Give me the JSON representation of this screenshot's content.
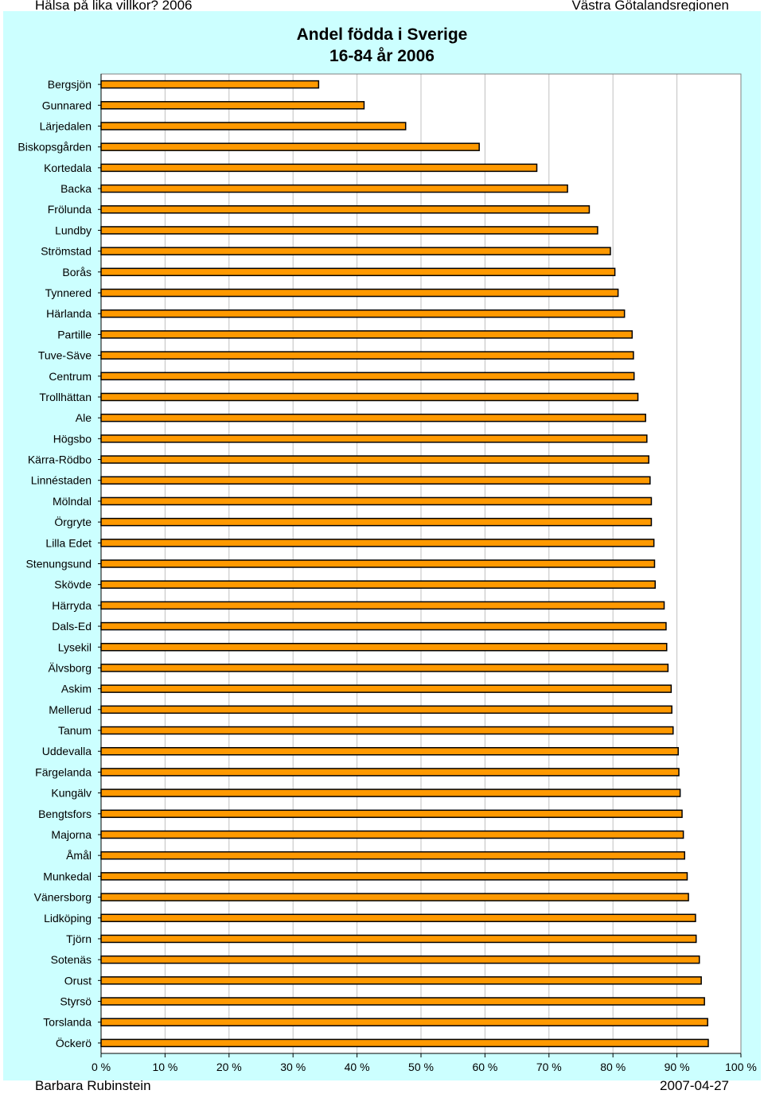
{
  "header": {
    "left": "Hälsa på lika villkor? 2006",
    "right": "Västra Götalandsregionen"
  },
  "footer": {
    "left": "Barbara Rubinstein",
    "right": "2007-04-27"
  },
  "colors": {
    "bar_fill": "#ff9900",
    "bar_stroke": "#000000",
    "plot_bg": "#ffffff",
    "chart_bg": "#ccffff",
    "grid": "#c0c0c0"
  },
  "chart_data": {
    "type": "bar",
    "orientation": "horizontal",
    "title": "Andel födda i Sverige",
    "subtitle": "16-84 år 2006",
    "xlim": [
      0,
      100
    ],
    "xticks": [
      "0 %",
      "10 %",
      "20 %",
      "30 %",
      "40 %",
      "50 %",
      "60 %",
      "70 %",
      "80 %",
      "90 %",
      "100 %"
    ],
    "grid": true,
    "categories": [
      "Bergsjön",
      "Gunnared",
      "Lärjedalen",
      "Biskopsgården",
      "Kortedala",
      "Backa",
      "Frölunda",
      "Lundby",
      "Strömstad",
      "Borås",
      "Tynnered",
      "Härlanda",
      "Partille",
      "Tuve-Säve",
      "Centrum",
      "Trollhättan",
      "Ale",
      "Högsbo",
      "Kärra-Rödbo",
      "Linnéstaden",
      "Mölndal",
      "Örgryte",
      "Lilla Edet",
      "Stenungsund",
      "Skövde",
      "Härryda",
      "Dals-Ed",
      "Lysekil",
      "Älvsborg",
      "Askim",
      "Mellerud",
      "Tanum",
      "Uddevalla",
      "Färgelanda",
      "Kungälv",
      "Bengtsfors",
      "Majorna",
      "Åmål",
      "Munkedal",
      "Vänersborg",
      "Lidköping",
      "Tjörn",
      "Sotenäs",
      "Orust",
      "Styrsö",
      "Torslanda",
      "Öckerö"
    ],
    "values": [
      34.0,
      41.1,
      47.6,
      59.1,
      68.1,
      72.9,
      76.3,
      77.6,
      79.6,
      80.3,
      80.8,
      81.8,
      83.0,
      83.2,
      83.3,
      83.9,
      85.1,
      85.3,
      85.6,
      85.8,
      86.0,
      86.0,
      86.4,
      86.5,
      86.6,
      88.0,
      88.3,
      88.4,
      88.6,
      89.1,
      89.2,
      89.4,
      90.2,
      90.3,
      90.5,
      90.8,
      91.0,
      91.2,
      91.6,
      91.8,
      92.9,
      93.0,
      93.5,
      93.8,
      94.3,
      94.8,
      94.9
    ]
  }
}
